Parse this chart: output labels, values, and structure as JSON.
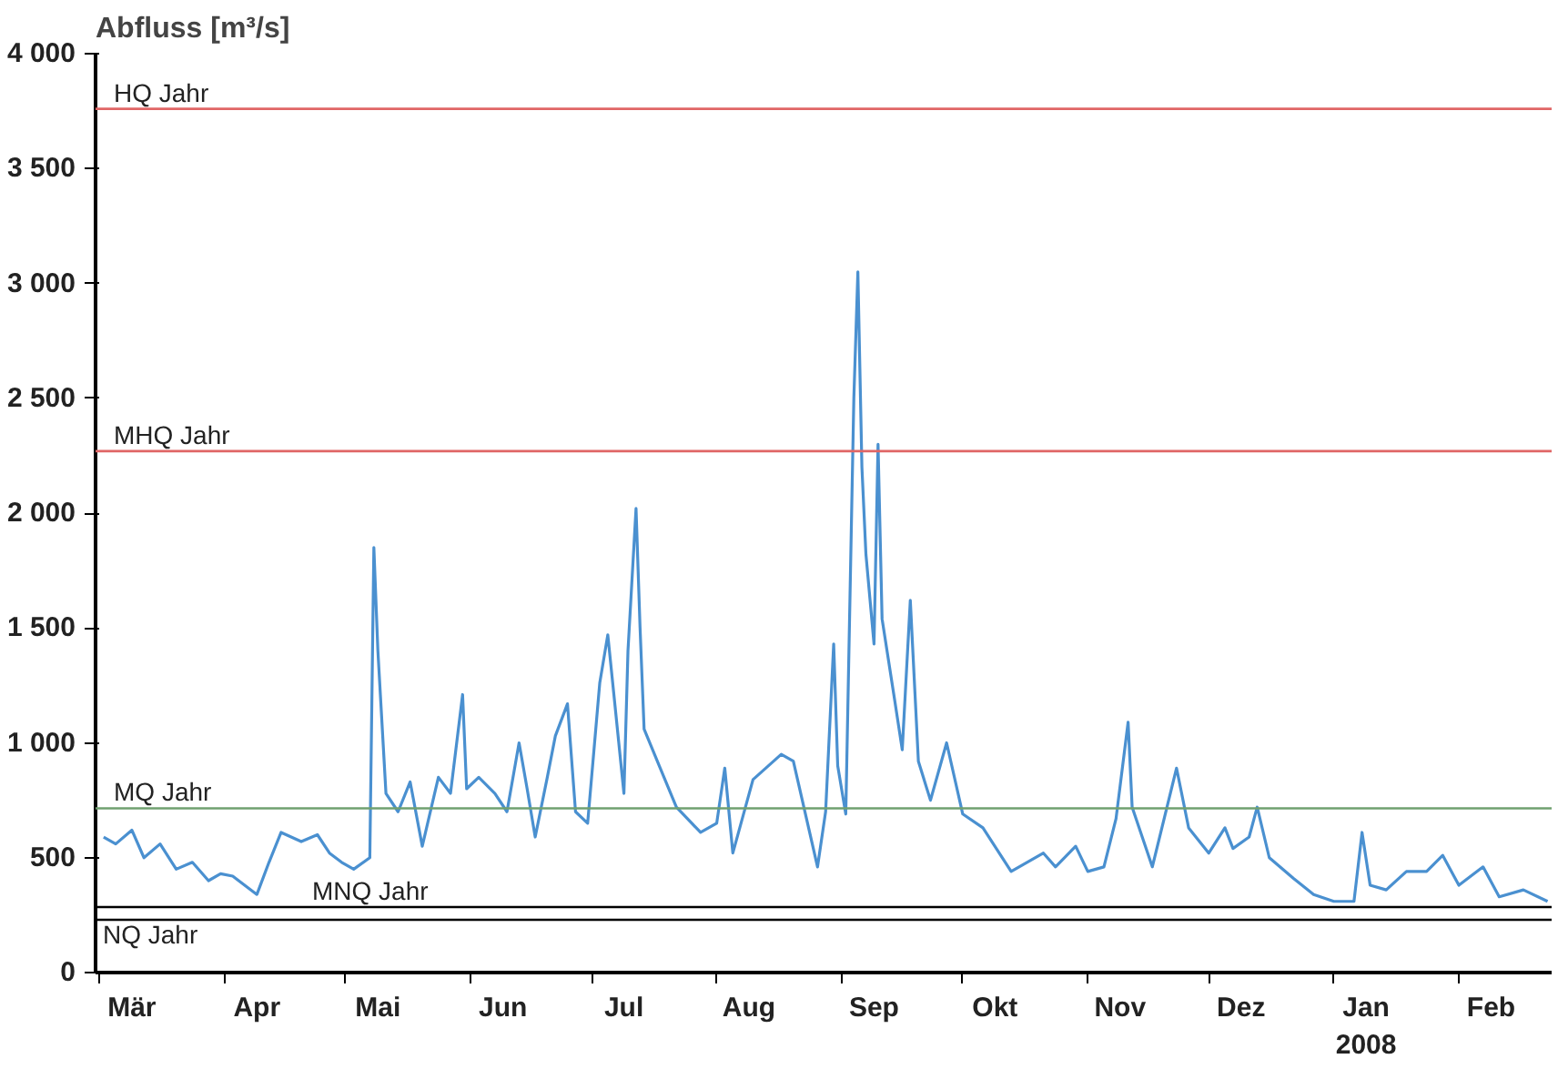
{
  "chart_data": {
    "type": "line",
    "ylabel": "Abfluss [m³/s]",
    "x": [
      "2007-03-02",
      "2007-03-05",
      "2007-03-09",
      "2007-03-12",
      "2007-03-16",
      "2007-03-20",
      "2007-03-24",
      "2007-03-28",
      "2007-03-31",
      "2007-04-03",
      "2007-04-09",
      "2007-04-12",
      "2007-04-15",
      "2007-04-20",
      "2007-04-24",
      "2007-04-27",
      "2007-04-30",
      "2007-05-03",
      "2007-05-07",
      "2007-05-08",
      "2007-05-09",
      "2007-05-11",
      "2007-05-14",
      "2007-05-17",
      "2007-05-20",
      "2007-05-24",
      "2007-05-27",
      "2007-05-30",
      "2007-05-31",
      "2007-06-03",
      "2007-06-07",
      "2007-06-10",
      "2007-06-13",
      "2007-06-15",
      "2007-06-17",
      "2007-06-20",
      "2007-06-22",
      "2007-06-25",
      "2007-06-27",
      "2007-06-30",
      "2007-07-03",
      "2007-07-05",
      "2007-07-09",
      "2007-07-10",
      "2007-07-12",
      "2007-07-13",
      "2007-07-14",
      "2007-07-18",
      "2007-07-22",
      "2007-07-28",
      "2007-08-01",
      "2007-08-03",
      "2007-08-05",
      "2007-08-10",
      "2007-08-17",
      "2007-08-20",
      "2007-08-26",
      "2007-08-28",
      "2007-08-30",
      "2007-08-31",
      "2007-09-02",
      "2007-09-04",
      "2007-09-05",
      "2007-09-06",
      "2007-09-07",
      "2007-09-09",
      "2007-09-10",
      "2007-09-11",
      "2007-09-14",
      "2007-09-16",
      "2007-09-18",
      "2007-09-20",
      "2007-09-23",
      "2007-09-27",
      "2007-10-01",
      "2007-10-06",
      "2007-10-13",
      "2007-10-21",
      "2007-10-24",
      "2007-10-29",
      "2007-11-01",
      "2007-11-05",
      "2007-11-08",
      "2007-11-11",
      "2007-11-12",
      "2007-11-17",
      "2007-11-23",
      "2007-11-26",
      "2007-12-01",
      "2007-12-05",
      "2007-12-07",
      "2007-12-11",
      "2007-12-13",
      "2007-12-16",
      "2007-12-22",
      "2007-12-27",
      "2008-01-01",
      "2008-01-06",
      "2008-01-08",
      "2008-01-10",
      "2008-01-14",
      "2008-01-19",
      "2008-01-24",
      "2008-01-28",
      "2008-02-01",
      "2008-02-07",
      "2008-02-11",
      "2008-02-17",
      "2008-02-23"
    ],
    "series": [
      {
        "color": "#4a90d0",
        "values": [
          590,
          560,
          620,
          500,
          560,
          450,
          480,
          400,
          430,
          420,
          340,
          480,
          610,
          570,
          600,
          520,
          480,
          450,
          500,
          1850,
          1400,
          780,
          700,
          830,
          550,
          850,
          780,
          1210,
          800,
          850,
          780,
          700,
          1000,
          800,
          590,
          850,
          1030,
          1170,
          700,
          650,
          1260,
          1470,
          780,
          1400,
          2020,
          1500,
          1060,
          890,
          720,
          610,
          650,
          890,
          520,
          840,
          950,
          920,
          460,
          700,
          1430,
          900,
          690,
          2500,
          3050,
          2200,
          1820,
          1430,
          2300,
          1540,
          1200,
          970,
          1620,
          920,
          750,
          1000,
          690,
          630,
          440,
          520,
          460,
          550,
          440,
          460,
          670,
          1090,
          720,
          460,
          890,
          630,
          520,
          630,
          540,
          590,
          720,
          500,
          410,
          340,
          310,
          310,
          610,
          380,
          360,
          440,
          440,
          510,
          380,
          460,
          330,
          360,
          310
        ]
      }
    ],
    "xlim": [
      "2007-02-28",
      "2008-02-24"
    ],
    "xticks": [
      {
        "value": "2007-03-01",
        "label": null
      },
      {
        "value": "2007-03-09",
        "label": "Mär"
      },
      {
        "value": "2007-04-01",
        "label": null
      },
      {
        "value": "2007-04-09",
        "label": "Apr"
      },
      {
        "value": "2007-05-01",
        "label": null
      },
      {
        "value": "2007-05-09",
        "label": "Mai"
      },
      {
        "value": "2007-06-01",
        "label": null
      },
      {
        "value": "2007-06-09",
        "label": "Jun"
      },
      {
        "value": "2007-07-01",
        "label": null
      },
      {
        "value": "2007-07-09",
        "label": "Jul"
      },
      {
        "value": "2007-08-01",
        "label": null
      },
      {
        "value": "2007-08-09",
        "label": "Aug"
      },
      {
        "value": "2007-09-01",
        "label": null
      },
      {
        "value": "2007-09-09",
        "label": "Sep"
      },
      {
        "value": "2007-10-01",
        "label": null
      },
      {
        "value": "2007-10-09",
        "label": "Okt"
      },
      {
        "value": "2007-11-01",
        "label": null
      },
      {
        "value": "2007-11-09",
        "label": "Nov"
      },
      {
        "value": "2007-12-01",
        "label": null
      },
      {
        "value": "2007-12-09",
        "label": "Dez"
      },
      {
        "value": "2008-01-01",
        "label": null
      },
      {
        "value": "2008-01-09",
        "label": "Jan\n2008"
      },
      {
        "value": "2008-02-01",
        "label": null
      },
      {
        "value": "2008-02-09",
        "label": "Feb"
      }
    ],
    "ylim": [
      0,
      4000
    ],
    "yticks": [
      0,
      500,
      {
        "value": 1000,
        "label": "1 000"
      },
      {
        "value": 1500,
        "label": "1 500"
      },
      {
        "value": 2000,
        "label": "2 000"
      },
      {
        "value": 2500,
        "label": "2 500"
      },
      {
        "value": 3000,
        "label": "3 000"
      },
      {
        "value": 3500,
        "label": "3 500"
      },
      {
        "value": 4000,
        "label": "4 000"
      }
    ],
    "ref_lines": [
      {
        "axis": "y",
        "value": 3760,
        "label": "HQ Jahr",
        "color": "#e06666"
      },
      {
        "axis": "y",
        "value": 2270,
        "label": "MHQ Jahr",
        "color": "#e06666"
      },
      {
        "axis": "y",
        "value": 715,
        "label": "MQ Jahr",
        "color": "#70a070"
      },
      {
        "axis": "y",
        "value": 285,
        "label": "MNQ Jahr",
        "color": "#000000"
      },
      {
        "axis": "y",
        "value": 230,
        "label": "NQ Jahr",
        "color": "#000000"
      }
    ],
    "grid": false,
    "line_style": "solid",
    "marker": "none"
  }
}
